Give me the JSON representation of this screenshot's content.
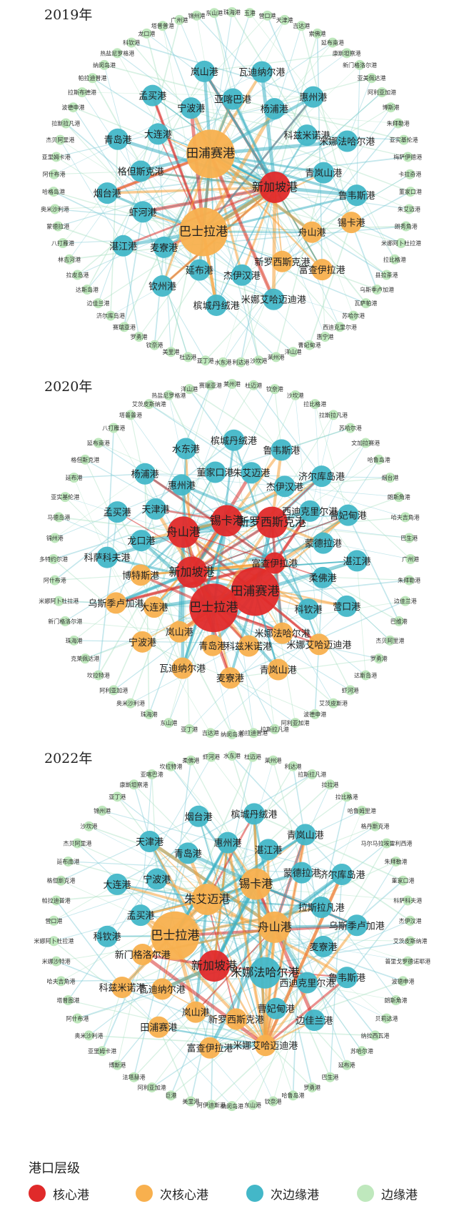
{
  "colors": {
    "core": "#e02a2a",
    "secondary_core": "#f8b04e",
    "secondary_edge": "#43b7c8",
    "edge": "#bfe8bd"
  },
  "panels": [
    {
      "title": "2019年",
      "nodes": [
        {
          "name": "新加坡港",
          "level": "core",
          "size": 2
        },
        {
          "name": "巴士拉港",
          "level": "secondary_core",
          "size": 3
        },
        {
          "name": "田浦赛港",
          "level": "secondary_core",
          "size": 3
        },
        {
          "name": "锡卡港",
          "level": "secondary_core",
          "size": 1
        },
        {
          "name": "舟山港",
          "level": "secondary_core",
          "size": 1
        },
        {
          "name": "富查伊拉港",
          "level": "secondary_core",
          "size": 1
        },
        {
          "name": "新罗西斯克港",
          "level": "secondary_core",
          "size": 1
        },
        {
          "name": "米娜艾哈迈迪港",
          "level": "secondary_edge",
          "size": 1
        },
        {
          "name": "杰伊汉港",
          "level": "secondary_edge",
          "size": 1
        },
        {
          "name": "槟城丹绒港",
          "level": "secondary_edge",
          "size": 1
        },
        {
          "name": "延布港",
          "level": "secondary_edge",
          "size": 1
        },
        {
          "name": "钦州港",
          "level": "secondary_edge",
          "size": 1
        },
        {
          "name": "麦寮港",
          "level": "secondary_edge",
          "size": 1
        },
        {
          "name": "湛江港",
          "level": "secondary_edge",
          "size": 1
        },
        {
          "name": "虾河港",
          "level": "secondary_edge",
          "size": 1
        },
        {
          "name": "烟台港",
          "level": "secondary_edge",
          "size": 1
        },
        {
          "name": "格但斯克港",
          "level": "secondary_edge",
          "size": 1
        },
        {
          "name": "青岛港",
          "level": "secondary_edge",
          "size": 1
        },
        {
          "name": "大连港",
          "level": "secondary_edge",
          "size": 1
        },
        {
          "name": "孟买港",
          "level": "secondary_edge",
          "size": 1
        },
        {
          "name": "宁波港",
          "level": "secondary_edge",
          "size": 1
        },
        {
          "name": "岚山港",
          "level": "secondary_edge",
          "size": 1
        },
        {
          "name": "亚喀巴港",
          "level": "secondary_edge",
          "size": 1
        },
        {
          "name": "瓦迪纳尔港",
          "level": "secondary_edge",
          "size": 1
        },
        {
          "name": "杨浦港",
          "level": "secondary_edge",
          "size": 1
        },
        {
          "name": "惠州港",
          "level": "secondary_edge",
          "size": 1
        },
        {
          "name": "科兹米诺港",
          "level": "secondary_edge",
          "size": 1
        },
        {
          "name": "米娜法哈尔港",
          "level": "secondary_edge",
          "size": 1
        },
        {
          "name": "青岚山港",
          "level": "secondary_edge",
          "size": 1
        },
        {
          "name": "鲁韦斯港",
          "level": "secondary_edge",
          "size": 1
        }
      ],
      "outer": [
        "珠海港",
        "玉港",
        "营口港",
        "天津港",
        "吉达港",
        "索佛港",
        "延布南港",
        "康斯坦察港",
        "新门格洛尔港",
        "亚美佩达港",
        "阿利亚加港",
        "博斯港",
        "朱拜勒港",
        "亚实基伦港",
        "梅萨伊德港",
        "卡拉奇港",
        "董家口港",
        "朱艾迈港",
        "朗秀角港",
        "米娜阿卜杜拉港",
        "拉比格港",
        "县拉茶港",
        "乌斯季卢加港",
        "瓦萨帕港",
        "苏哈尔港",
        "西迪克里尔港",
        "惠宁港",
        "曹妃甸港",
        "洋山港",
        "莱州港",
        "沙坎港",
        "利达港",
        "水东港",
        "亚丁港",
        "杜迈港",
        "美里港",
        "钦奈港",
        "罗勇港",
        "赛瑞亚港",
        "济尔库岛港",
        "边佳兰港",
        "达斯岛港",
        "拉皮岛港",
        "林吉河港",
        "八打雁港",
        "蒙德拉港",
        "奥米沙利港",
        "哈格岛港",
        "阿什布港",
        "亚里姆卡港",
        "杰贝阿里港",
        "拉斯拉凡港",
        "波德申港",
        "拉斯布德港",
        "帕拉迪普港",
        "纳闵岛港",
        "热盐尼罗格港",
        "科钦港",
        "龙口港",
        "塔普普港",
        "广州港",
        "锦州港",
        "东山港"
      ]
    },
    {
      "title": "2020年",
      "nodes": [
        {
          "name": "田浦赛港",
          "level": "core",
          "size": 3
        },
        {
          "name": "巴士拉港",
          "level": "core",
          "size": 3
        },
        {
          "name": "新加坡港",
          "level": "core",
          "size": 2
        },
        {
          "name": "舟山港",
          "level": "core",
          "size": 2
        },
        {
          "name": "锡卡港",
          "level": "core",
          "size": 2
        },
        {
          "name": "新罗西斯克港",
          "level": "core",
          "size": 2
        },
        {
          "name": "富查伊拉港",
          "level": "core",
          "size": 1
        },
        {
          "name": "米娜艾哈迈迪港",
          "level": "secondary_core",
          "size": 1
        },
        {
          "name": "米娜法哈尔港",
          "level": "secondary_core",
          "size": 1
        },
        {
          "name": "青岚山港",
          "level": "secondary_core",
          "size": 1
        },
        {
          "name": "科兹米诺港",
          "level": "secondary_core",
          "size": 1
        },
        {
          "name": "麦寮港",
          "level": "secondary_core",
          "size": 1
        },
        {
          "name": "青岛港",
          "level": "secondary_core",
          "size": 1
        },
        {
          "name": "瓦迪纳尔港",
          "level": "secondary_core",
          "size": 1
        },
        {
          "name": "岚山港",
          "level": "secondary_core",
          "size": 1
        },
        {
          "name": "宁波港",
          "level": "secondary_core",
          "size": 1
        },
        {
          "name": "大连港",
          "level": "secondary_core",
          "size": 1
        },
        {
          "name": "乌斯季卢加港",
          "level": "secondary_core",
          "size": 1
        },
        {
          "name": "博特斯港",
          "level": "secondary_core",
          "size": 1
        },
        {
          "name": "科萨科夫港",
          "level": "secondary_edge",
          "size": 1
        },
        {
          "name": "龙口港",
          "level": "secondary_edge",
          "size": 1
        },
        {
          "name": "孟买港",
          "level": "secondary_edge",
          "size": 1
        },
        {
          "name": "天津港",
          "level": "secondary_edge",
          "size": 1
        },
        {
          "name": "杨浦港",
          "level": "secondary_edge",
          "size": 1
        },
        {
          "name": "惠州港",
          "level": "secondary_edge",
          "size": 1
        },
        {
          "name": "水东港",
          "level": "secondary_edge",
          "size": 1
        },
        {
          "name": "董家口港",
          "level": "secondary_edge",
          "size": 1
        },
        {
          "name": "槟城丹绒港",
          "level": "secondary_edge",
          "size": 1
        },
        {
          "name": "朱艾迈港",
          "level": "secondary_edge",
          "size": 1
        },
        {
          "name": "鲁韦斯港",
          "level": "secondary_edge",
          "size": 1
        },
        {
          "name": "杰伊汉港",
          "level": "secondary_edge",
          "size": 1
        },
        {
          "name": "济尔库岛港",
          "level": "secondary_edge",
          "size": 1
        },
        {
          "name": "西迪克里尔港",
          "level": "secondary_edge",
          "size": 1
        },
        {
          "name": "曹妃甸港",
          "level": "secondary_edge",
          "size": 1
        },
        {
          "name": "蒙德拉港",
          "level": "secondary_edge",
          "size": 1
        },
        {
          "name": "湛江港",
          "level": "secondary_edge",
          "size": 1
        },
        {
          "name": "柔佛港",
          "level": "secondary_edge",
          "size": 1
        },
        {
          "name": "营口港",
          "level": "secondary_edge",
          "size": 1
        },
        {
          "name": "科钦港",
          "level": "secondary_edge",
          "size": 1
        }
      ],
      "outer": [
        "莱州港",
        "杜迈港",
        "钦奈港",
        "沙坎港",
        "拉比格港",
        "拉斯拉凡港",
        "苏哈尔港",
        "文加拉赛港",
        "哈鲁岛港",
        "烟台港",
        "朗斯角港",
        "哈夫吉角港",
        "巴生港",
        "广州港",
        "朱拜勒港",
        "边佳兰港",
        "巴维港",
        "杰贝阿里港",
        "罗勇港",
        "达斯岛港",
        "虾河港",
        "艾茨皮斯港",
        "波德申港",
        "阿利亚加港",
        "拉斯拉凡港",
        "帕拉迪普港",
        "纳闵岛港",
        "吉达港",
        "亚丁港",
        "东山港",
        "珠海港",
        "奥米沙利港",
        "阿利亚加港",
        "坎拉特港",
        "克莱佩达港",
        "珠海港",
        "新门格洛尔港",
        "米娜阿卜杜拉港",
        "阿什布港",
        "多特约尔港",
        "锦州港",
        "马德岛港",
        "亚实基伦港",
        "延布港",
        "格但斯克港",
        "延布南港",
        "八打雁港",
        "塔普普港",
        "艾茨皮斯纳港",
        "热盐尼罗格港",
        "洋山港",
        "赛瑞亚港"
      ]
    },
    {
      "title": "2022年",
      "nodes": [
        {
          "name": "新加坡港",
          "level": "core",
          "size": 2
        },
        {
          "name": "巴士拉港",
          "level": "secondary_core",
          "size": 3
        },
        {
          "name": "朱艾迈港",
          "level": "secondary_core",
          "size": 2
        },
        {
          "name": "锡卡港",
          "level": "secondary_core",
          "size": 2
        },
        {
          "name": "舟山港",
          "level": "secondary_core",
          "size": 2
        },
        {
          "name": "米娜艾哈迈迪港",
          "level": "secondary_core",
          "size": 1
        },
        {
          "name": "新罗西斯克港",
          "level": "secondary_core",
          "size": 1
        },
        {
          "name": "富查伊拉港",
          "level": "secondary_core",
          "size": 1
        },
        {
          "name": "岚山港",
          "level": "secondary_core",
          "size": 1
        },
        {
          "name": "田浦赛港",
          "level": "secondary_core",
          "size": 1
        },
        {
          "name": "瓦迪纳尔港",
          "level": "secondary_core",
          "size": 1
        },
        {
          "name": "科兹米诺港",
          "level": "secondary_core",
          "size": 1
        },
        {
          "name": "新门格洛尔港",
          "level": "secondary_core",
          "size": 1
        },
        {
          "name": "米娜法哈尔港",
          "level": "secondary_edge",
          "size": 2
        },
        {
          "name": "科钦港",
          "level": "secondary_edge",
          "size": 1
        },
        {
          "name": "孟买港",
          "level": "secondary_edge",
          "size": 1
        },
        {
          "name": "大连港",
          "level": "secondary_edge",
          "size": 1
        },
        {
          "name": "宁波港",
          "level": "secondary_edge",
          "size": 1
        },
        {
          "name": "天津港",
          "level": "secondary_edge",
          "size": 1
        },
        {
          "name": "青岛港",
          "level": "secondary_edge",
          "size": 1
        },
        {
          "name": "烟台港",
          "level": "secondary_edge",
          "size": 1
        },
        {
          "name": "惠州港",
          "level": "secondary_edge",
          "size": 1
        },
        {
          "name": "槟城丹绒港",
          "level": "secondary_edge",
          "size": 1
        },
        {
          "name": "湛江港",
          "level": "secondary_edge",
          "size": 1
        },
        {
          "name": "青岚山港",
          "level": "secondary_edge",
          "size": 1
        },
        {
          "name": "蒙德拉港",
          "level": "secondary_edge",
          "size": 1
        },
        {
          "name": "济尔库岛港",
          "level": "secondary_edge",
          "size": 1
        },
        {
          "name": "拉斯拉凡港",
          "level": "secondary_edge",
          "size": 1
        },
        {
          "name": "乌斯季卢加港",
          "level": "secondary_edge",
          "size": 1
        },
        {
          "name": "麦寮港",
          "level": "secondary_edge",
          "size": 1
        },
        {
          "name": "鲁韦斯港",
          "level": "secondary_edge",
          "size": 1
        },
        {
          "name": "西迪克里尔港",
          "level": "secondary_edge",
          "size": 1
        },
        {
          "name": "边佳兰港",
          "level": "secondary_edge",
          "size": 1
        },
        {
          "name": "曹妃甸港",
          "level": "secondary_edge",
          "size": 1
        }
      ],
      "outer": [
        "水东港",
        "杜迈港",
        "莱州港",
        "利达港",
        "拉斯拉凡港",
        "拉拉港",
        "拉比格港",
        "哈鲁姆里港",
        "格丹斯克港",
        "马尔马拉埃雷利西港",
        "朱拜勒港",
        "董家口港",
        "科萨科夫港",
        "杰伊汉港",
        "艾茨皮斯纳港",
        "普里戈罗德诺耶港",
        "波德申港",
        "朗斯角港",
        "贝莉达港",
        "纳拉西瓦港",
        "苏哈尔港",
        "延布港",
        "巴生港",
        "罗勇港",
        "哈鲁岛港",
        "钦奈港",
        "东山港",
        "纳闵岛港",
        "阿伊迪斯港",
        "美里港",
        "巨港",
        "阿利亚加港",
        "法塔赫港",
        "博斯港",
        "亚里姆卡港",
        "奥米沙利港",
        "阿什布港",
        "塔普图港",
        "哈夫吉角港",
        "米娜沙特港",
        "米娜阿卜杜拉港",
        "营口港",
        "帕拉迪普港",
        "格但斯克港",
        "延布南港",
        "杰贝阿里港",
        "沙坎港",
        "锦州港",
        "亚丁港",
        "康斯坦察港",
        "亚喀巴港",
        "坎拉特港",
        "柔佛港",
        "虾河港"
      ]
    }
  ],
  "legend": {
    "title": "港口层级",
    "items": [
      {
        "label": "核心港",
        "level": "core"
      },
      {
        "label": "次核心港",
        "level": "secondary_core"
      },
      {
        "label": "次边缘港",
        "level": "secondary_edge"
      },
      {
        "label": "边缘港",
        "level": "edge"
      }
    ]
  }
}
